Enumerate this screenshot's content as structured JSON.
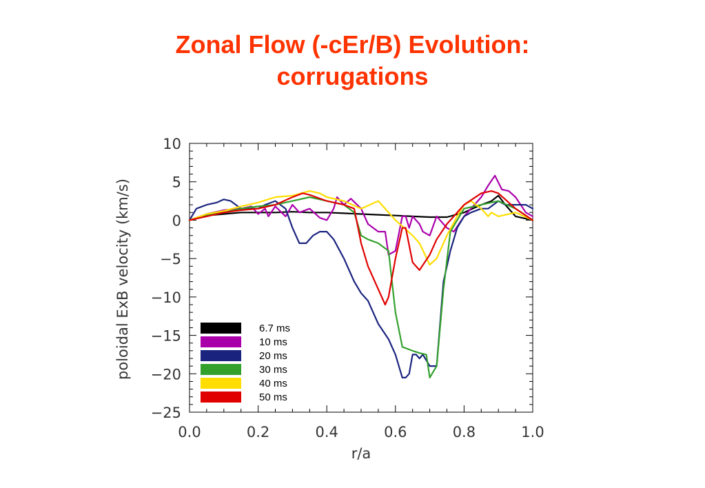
{
  "slide": {
    "title_line1": "Zonal Flow (-cEr/B) Evolution:",
    "title_line2": "corrugations"
  },
  "chart_data": {
    "type": "line",
    "title": "",
    "xlabel": "r/a",
    "ylabel": "poloidal ExB velocity (km/s)",
    "xlim": [
      0.0,
      1.0
    ],
    "ylim": [
      -25,
      10
    ],
    "xticks": [
      "0.0",
      "0.2",
      "0.4",
      "0.6",
      "0.8",
      "1.0"
    ],
    "yticks": [
      "10",
      "5",
      "0",
      "−5",
      "−10",
      "−15",
      "−20",
      "−25"
    ],
    "grid": false,
    "legend_position": "bottom-left",
    "series": [
      {
        "name": "6.7 ms",
        "color": "#000000",
        "x": [
          0,
          0.02,
          0.05,
          0.1,
          0.15,
          0.2,
          0.25,
          0.3,
          0.35,
          0.4,
          0.45,
          0.5,
          0.55,
          0.6,
          0.65,
          0.7,
          0.75,
          0.8,
          0.85,
          0.88,
          0.9,
          0.92,
          0.95,
          1.0
        ],
        "y": [
          0,
          0.3,
          0.6,
          0.8,
          1.0,
          1.0,
          1.0,
          1.1,
          1.0,
          1.0,
          0.9,
          0.8,
          0.7,
          0.6,
          0.5,
          0.4,
          0.4,
          1.0,
          2.0,
          2.5,
          3.2,
          2.0,
          0.5,
          0
        ]
      },
      {
        "name": "10 ms",
        "color": "#aa00aa",
        "x": [
          0,
          0.05,
          0.1,
          0.15,
          0.18,
          0.2,
          0.22,
          0.23,
          0.25,
          0.28,
          0.3,
          0.32,
          0.35,
          0.38,
          0.4,
          0.42,
          0.43,
          0.45,
          0.47,
          0.5,
          0.52,
          0.55,
          0.57,
          0.58,
          0.6,
          0.62,
          0.63,
          0.64,
          0.65,
          0.67,
          0.68,
          0.7,
          0.72,
          0.75,
          0.77,
          0.8,
          0.82,
          0.85,
          0.87,
          0.89,
          0.91,
          0.93,
          0.95,
          0.98,
          1.0
        ],
        "y": [
          0,
          0.8,
          1.3,
          1.5,
          1.8,
          0.8,
          1.5,
          0.5,
          1.8,
          0.5,
          2.0,
          1.0,
          1.5,
          0.3,
          0.0,
          1.5,
          3.0,
          2.0,
          2.8,
          1.5,
          -0.5,
          -1.5,
          -1.5,
          -4.5,
          -4.0,
          0.5,
          0.5,
          -1.0,
          0.5,
          -0.5,
          -1.5,
          -2.0,
          0.5,
          -1.0,
          -1.5,
          0.5,
          1.5,
          3.0,
          4.5,
          5.8,
          4.0,
          3.8,
          3.0,
          1.0,
          0.5
        ]
      },
      {
        "name": "20 ms",
        "color": "#1a237e",
        "x": [
          0,
          0.02,
          0.05,
          0.08,
          0.1,
          0.12,
          0.15,
          0.2,
          0.22,
          0.25,
          0.28,
          0.3,
          0.32,
          0.34,
          0.36,
          0.38,
          0.4,
          0.42,
          0.45,
          0.48,
          0.5,
          0.52,
          0.55,
          0.58,
          0.6,
          0.62,
          0.63,
          0.64,
          0.65,
          0.66,
          0.67,
          0.68,
          0.7,
          0.72,
          0.74,
          0.76,
          0.78,
          0.8,
          0.82,
          0.85,
          0.87,
          0.9,
          0.92,
          0.95,
          0.98,
          1.0
        ],
        "y": [
          0,
          1.5,
          2.0,
          2.3,
          2.7,
          2.5,
          1.5,
          1.5,
          2.0,
          2.5,
          1.5,
          -1.0,
          -3.0,
          -3.0,
          -2.0,
          -1.5,
          -1.5,
          -2.5,
          -5.0,
          -8.0,
          -9.5,
          -10.5,
          -13.5,
          -15.5,
          -17.5,
          -20.5,
          -20.5,
          -20.0,
          -17.5,
          -17.5,
          -18.0,
          -17.5,
          -19.0,
          -19.0,
          -8.0,
          -4.0,
          -1.0,
          0.5,
          1.0,
          1.5,
          1.5,
          2.5,
          2.0,
          2.0,
          2.0,
          1.5
        ]
      },
      {
        "name": "30 ms",
        "color": "#33a02c",
        "x": [
          0,
          0.05,
          0.1,
          0.15,
          0.2,
          0.25,
          0.3,
          0.35,
          0.4,
          0.45,
          0.48,
          0.5,
          0.52,
          0.55,
          0.58,
          0.6,
          0.62,
          0.65,
          0.67,
          0.69,
          0.7,
          0.72,
          0.74,
          0.76,
          0.8,
          0.85,
          0.9,
          0.95,
          1.0
        ],
        "y": [
          0,
          0.7,
          1.0,
          1.5,
          1.8,
          2.0,
          2.5,
          3.0,
          2.5,
          2.0,
          1.0,
          -2.0,
          -2.5,
          -3.0,
          -4.0,
          -12.0,
          -16.5,
          -17.0,
          -17.3,
          -17.5,
          -20.5,
          -19.0,
          -9.0,
          -1.5,
          1.5,
          2.0,
          2.5,
          1.5,
          0
        ]
      },
      {
        "name": "40 ms",
        "color": "#ffdd00",
        "x": [
          0,
          0.05,
          0.1,
          0.15,
          0.2,
          0.25,
          0.3,
          0.35,
          0.38,
          0.4,
          0.45,
          0.5,
          0.55,
          0.6,
          0.65,
          0.67,
          0.7,
          0.72,
          0.75,
          0.78,
          0.8,
          0.82,
          0.85,
          0.87,
          0.88,
          0.9,
          0.95,
          1.0
        ],
        "y": [
          0,
          0.8,
          1.2,
          1.8,
          2.3,
          3.0,
          3.2,
          3.8,
          3.5,
          3.0,
          2.5,
          1.5,
          2.5,
          0.0,
          -2.0,
          -3.0,
          -5.8,
          -5.0,
          -2.0,
          0.5,
          2.0,
          2.5,
          1.5,
          0.5,
          1.0,
          0.5,
          1.0,
          0
        ]
      },
      {
        "name": "50 ms",
        "color": "#e00000",
        "x": [
          0,
          0.05,
          0.1,
          0.15,
          0.2,
          0.25,
          0.3,
          0.33,
          0.35,
          0.4,
          0.45,
          0.48,
          0.5,
          0.52,
          0.55,
          0.57,
          0.58,
          0.6,
          0.62,
          0.63,
          0.65,
          0.67,
          0.7,
          0.72,
          0.75,
          0.8,
          0.85,
          0.88,
          0.9,
          0.95,
          1.0
        ],
        "y": [
          0,
          0.5,
          1.0,
          1.3,
          1.5,
          2.0,
          3.0,
          3.5,
          3.3,
          2.5,
          2.0,
          1.5,
          -3.0,
          -6.0,
          -9.0,
          -11.0,
          -10.0,
          -5.0,
          -1.0,
          -1.0,
          -5.5,
          -6.5,
          -4.5,
          -2.5,
          -0.5,
          2.0,
          3.5,
          3.8,
          3.5,
          1.5,
          0
        ]
      }
    ]
  }
}
